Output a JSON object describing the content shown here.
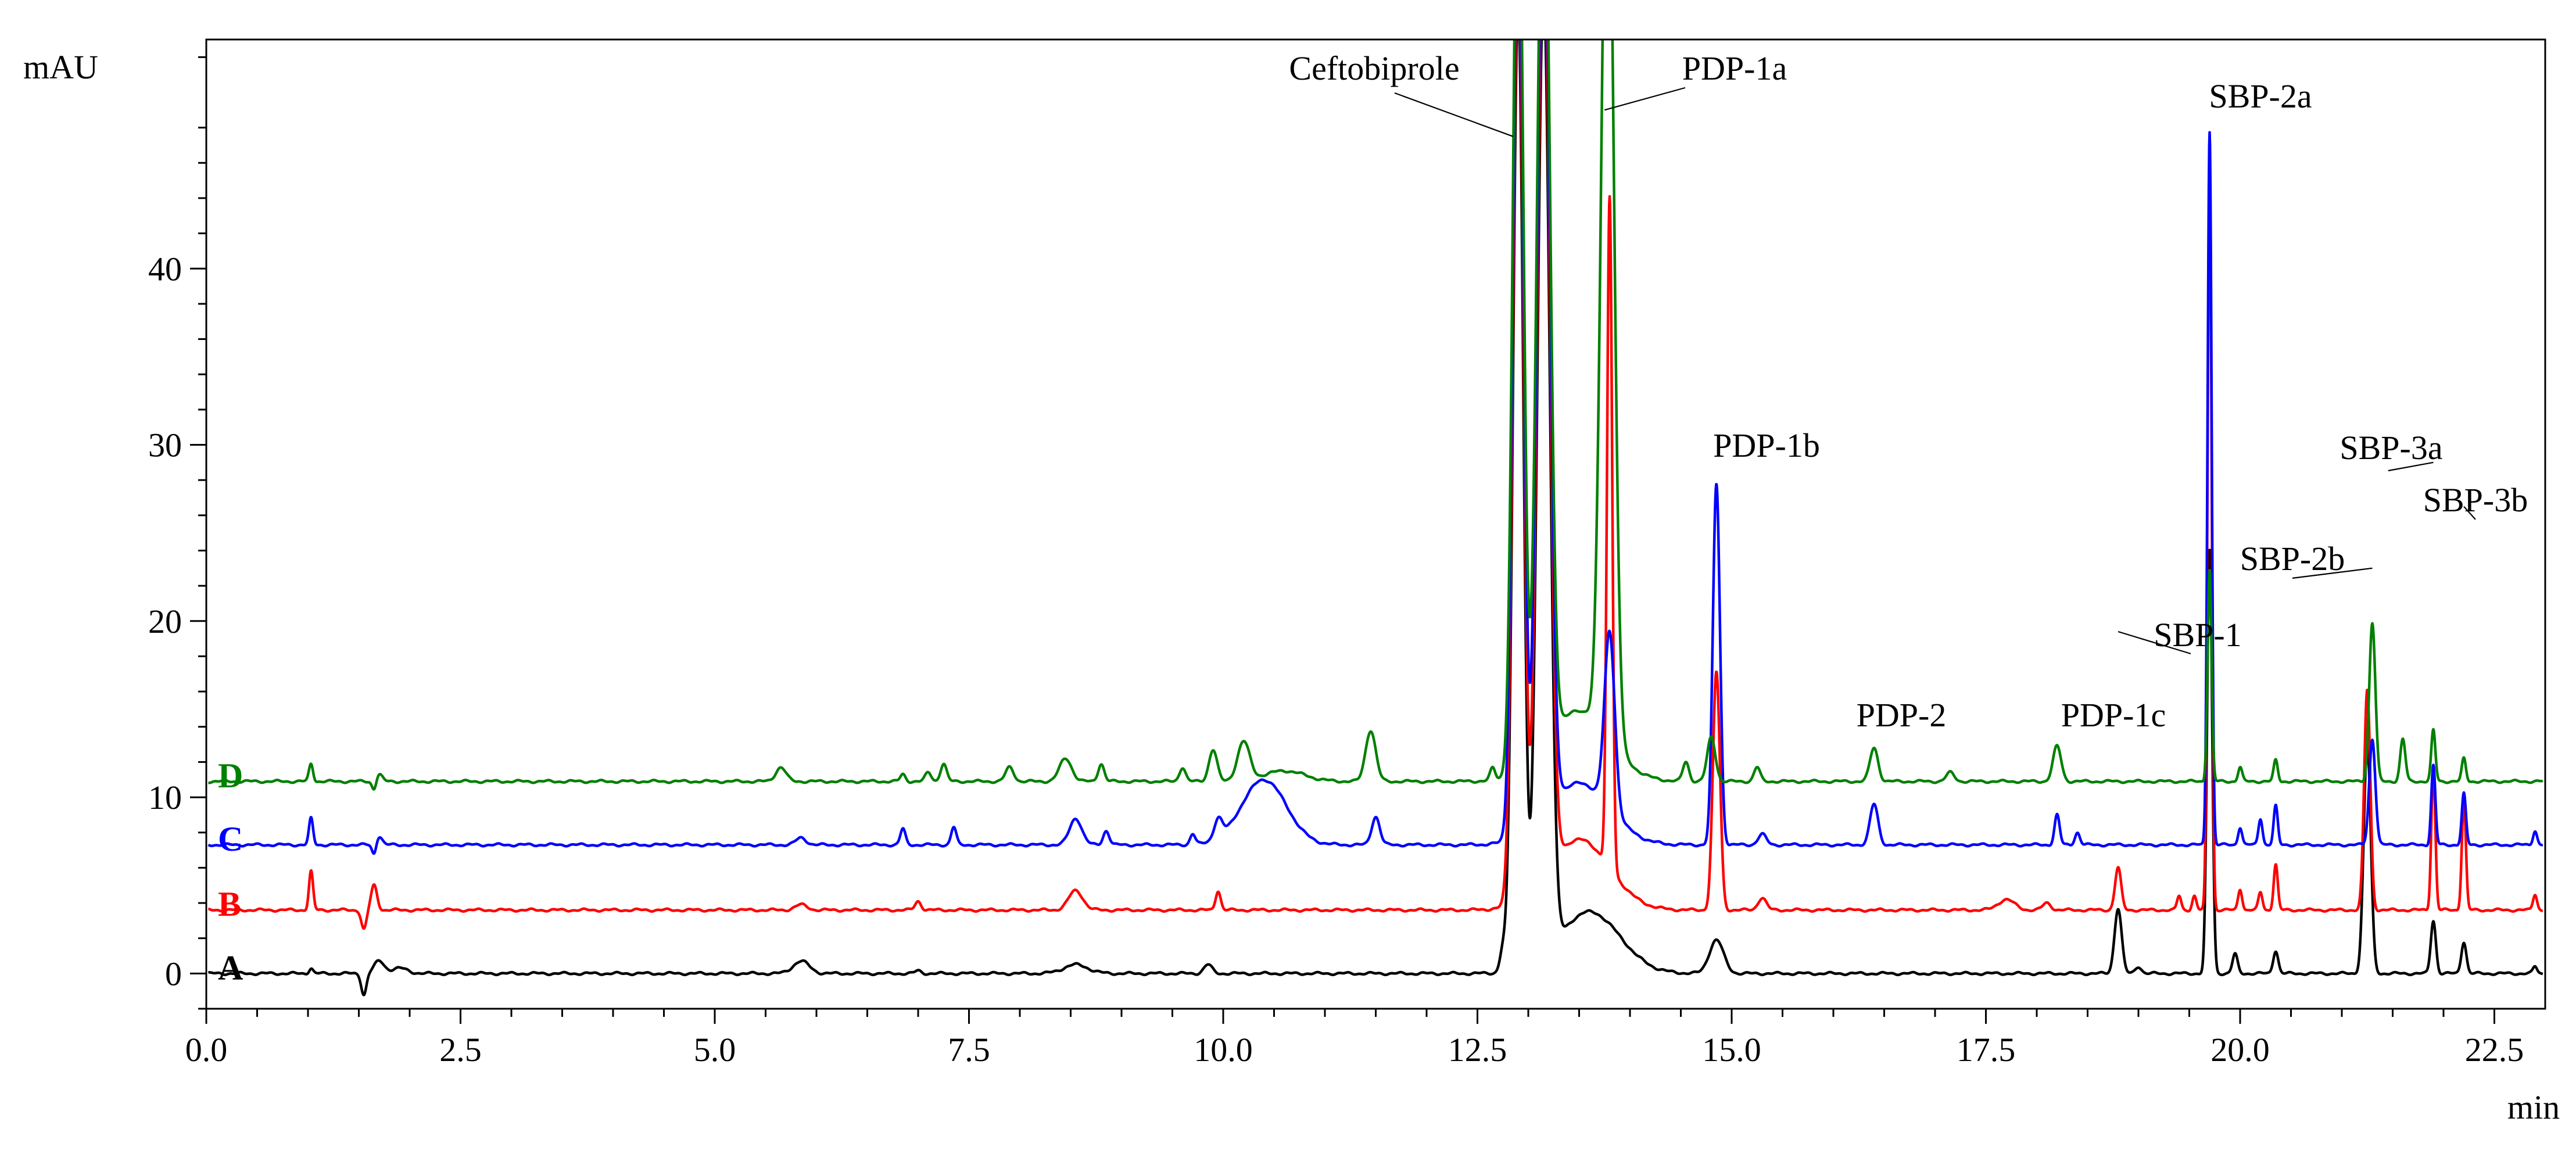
{
  "chart_data": {
    "type": "line",
    "xlabel": "min",
    "ylabel": "mAU",
    "xlim": [
      0,
      23.0
    ],
    "ylim": [
      -2,
      53
    ],
    "x_ticks": [
      {
        "value": 0,
        "label": "0.0"
      },
      {
        "value": 2.5,
        "label": "2.5"
      },
      {
        "value": 5.0,
        "label": "5.0"
      },
      {
        "value": 7.5,
        "label": "7.5"
      },
      {
        "value": 10.0,
        "label": "10.0"
      },
      {
        "value": 12.5,
        "label": "12.5"
      },
      {
        "value": 15.0,
        "label": "15.0"
      },
      {
        "value": 17.5,
        "label": "17.5"
      },
      {
        "value": 20.0,
        "label": "20.0"
      },
      {
        "value": 22.5,
        "label": "22.5"
      }
    ],
    "y_ticks": [
      {
        "value": 0,
        "label": "0"
      },
      {
        "value": 10,
        "label": "10"
      },
      {
        "value": 20,
        "label": "20"
      },
      {
        "value": 30,
        "label": "30"
      },
      {
        "value": 40,
        "label": "40"
      }
    ],
    "series": [
      {
        "name": "A",
        "color": "#000000",
        "baseline": 0.0,
        "peaks": [
          {
            "t": 1.03,
            "h": 0.3,
            "w": 0.02
          },
          {
            "t": 1.55,
            "h": -1.2,
            "w": 0.025
          },
          {
            "t": 1.7,
            "h": 0.7,
            "w": 0.05
          },
          {
            "t": 1.9,
            "h": 0.3,
            "w": 0.08
          },
          {
            "t": 5.85,
            "h": 0.7,
            "w": 0.08
          },
          {
            "t": 7.0,
            "h": 0.15,
            "w": 0.03
          },
          {
            "t": 8.55,
            "h": 0.5,
            "w": 0.12
          },
          {
            "t": 9.85,
            "h": 0.5,
            "w": 0.04
          },
          {
            "t": 12.75,
            "h": 1.2,
            "w": 0.03
          },
          {
            "t": 12.9,
            "h": 55,
            "w": 0.05
          },
          {
            "t": 13.15,
            "h": 55,
            "w": 0.06
          },
          {
            "t": 13.6,
            "h": 3.5,
            "w": 0.3
          },
          {
            "t": 14.85,
            "h": 1.9,
            "w": 0.07
          },
          {
            "t": 18.8,
            "h": 3.7,
            "w": 0.035
          },
          {
            "t": 19.0,
            "h": 0.4,
            "w": 0.03
          },
          {
            "t": 19.7,
            "h": 24,
            "w": 0.025
          },
          {
            "t": 19.95,
            "h": 1.1,
            "w": 0.025
          },
          {
            "t": 20.35,
            "h": 1.3,
            "w": 0.025
          },
          {
            "t": 21.25,
            "h": 13,
            "w": 0.035
          },
          {
            "t": 21.9,
            "h": 3.0,
            "w": 0.025
          },
          {
            "t": 22.2,
            "h": 1.8,
            "w": 0.025
          },
          {
            "t": 22.9,
            "h": 0.4,
            "w": 0.02
          }
        ]
      },
      {
        "name": "B",
        "color": "#ff0000",
        "baseline": 3.6,
        "peaks": [
          {
            "t": 1.03,
            "h": 2.2,
            "w": 0.02
          },
          {
            "t": 1.55,
            "h": -1.1,
            "w": 0.025
          },
          {
            "t": 1.65,
            "h": 1.4,
            "w": 0.03
          },
          {
            "t": 5.85,
            "h": 0.3,
            "w": 0.06
          },
          {
            "t": 7.0,
            "h": 0.5,
            "w": 0.03
          },
          {
            "t": 8.55,
            "h": 1.1,
            "w": 0.07
          },
          {
            "t": 9.95,
            "h": 1.1,
            "w": 0.025
          },
          {
            "t": 12.9,
            "h": 55,
            "w": 0.05
          },
          {
            "t": 13.15,
            "h": 55,
            "w": 0.06
          },
          {
            "t": 13.5,
            "h": 4.0,
            "w": 0.3
          },
          {
            "t": 13.8,
            "h": 38,
            "w": 0.025
          },
          {
            "t": 14.85,
            "h": 13.5,
            "w": 0.035
          },
          {
            "t": 15.3,
            "h": 0.7,
            "w": 0.04
          },
          {
            "t": 17.7,
            "h": 0.6,
            "w": 0.08
          },
          {
            "t": 18.1,
            "h": 0.4,
            "w": 0.04
          },
          {
            "t": 18.8,
            "h": 2.4,
            "w": 0.03
          },
          {
            "t": 19.4,
            "h": 0.8,
            "w": 0.02
          },
          {
            "t": 19.55,
            "h": 0.8,
            "w": 0.02
          },
          {
            "t": 19.7,
            "h": 42,
            "w": 0.02
          },
          {
            "t": 20.0,
            "h": 1.2,
            "w": 0.02
          },
          {
            "t": 20.2,
            "h": 1.0,
            "w": 0.02
          },
          {
            "t": 20.35,
            "h": 2.6,
            "w": 0.02
          },
          {
            "t": 21.25,
            "h": 12.5,
            "w": 0.03
          },
          {
            "t": 21.9,
            "h": 8.0,
            "w": 0.02
          },
          {
            "t": 22.2,
            "h": 6.3,
            "w": 0.02
          },
          {
            "t": 22.9,
            "h": 0.9,
            "w": 0.02
          }
        ]
      },
      {
        "name": "C",
        "color": "#0000ff",
        "baseline": 7.3,
        "peaks": [
          {
            "t": 1.03,
            "h": 1.5,
            "w": 0.02
          },
          {
            "t": 1.65,
            "h": -0.6,
            "w": 0.02
          },
          {
            "t": 1.7,
            "h": 0.5,
            "w": 0.03
          },
          {
            "t": 5.85,
            "h": 0.4,
            "w": 0.05
          },
          {
            "t": 6.85,
            "h": 0.9,
            "w": 0.025
          },
          {
            "t": 7.35,
            "h": 1.0,
            "w": 0.025
          },
          {
            "t": 8.55,
            "h": 1.5,
            "w": 0.06
          },
          {
            "t": 8.85,
            "h": 0.8,
            "w": 0.03
          },
          {
            "t": 9.7,
            "h": 0.6,
            "w": 0.025
          },
          {
            "t": 9.95,
            "h": 1.1,
            "w": 0.04
          },
          {
            "t": 10.4,
            "h": 3.7,
            "w": 0.22
          },
          {
            "t": 11.5,
            "h": 1.6,
            "w": 0.04
          },
          {
            "t": 12.9,
            "h": 55,
            "w": 0.05
          },
          {
            "t": 13.15,
            "h": 55,
            "w": 0.06
          },
          {
            "t": 13.5,
            "h": 3.5,
            "w": 0.3
          },
          {
            "t": 13.8,
            "h": 10,
            "w": 0.05
          },
          {
            "t": 14.85,
            "h": 20.5,
            "w": 0.035
          },
          {
            "t": 15.3,
            "h": 0.6,
            "w": 0.04
          },
          {
            "t": 16.4,
            "h": 2.3,
            "w": 0.04
          },
          {
            "t": 18.2,
            "h": 1.7,
            "w": 0.025
          },
          {
            "t": 18.4,
            "h": 0.7,
            "w": 0.025
          },
          {
            "t": 19.7,
            "h": 40.5,
            "w": 0.02
          },
          {
            "t": 20.0,
            "h": 1.0,
            "w": 0.02
          },
          {
            "t": 20.2,
            "h": 1.5,
            "w": 0.02
          },
          {
            "t": 20.35,
            "h": 2.2,
            "w": 0.02
          },
          {
            "t": 21.3,
            "h": 6.0,
            "w": 0.03
          },
          {
            "t": 21.9,
            "h": 4.5,
            "w": 0.02
          },
          {
            "t": 22.2,
            "h": 2.9,
            "w": 0.02
          },
          {
            "t": 22.9,
            "h": 0.8,
            "w": 0.02
          }
        ]
      },
      {
        "name": "D",
        "color": "#008000",
        "baseline": 10.9,
        "peaks": [
          {
            "t": 1.03,
            "h": 1.0,
            "w": 0.02
          },
          {
            "t": 1.65,
            "h": -0.5,
            "w": 0.02
          },
          {
            "t": 1.7,
            "h": 0.4,
            "w": 0.03
          },
          {
            "t": 5.65,
            "h": 0.8,
            "w": 0.05
          },
          {
            "t": 6.85,
            "h": 0.4,
            "w": 0.025
          },
          {
            "t": 7.1,
            "h": 0.5,
            "w": 0.03
          },
          {
            "t": 7.25,
            "h": 1.0,
            "w": 0.03
          },
          {
            "t": 7.9,
            "h": 0.8,
            "w": 0.04
          },
          {
            "t": 8.45,
            "h": 1.3,
            "w": 0.06
          },
          {
            "t": 8.8,
            "h": 1.0,
            "w": 0.03
          },
          {
            "t": 9.6,
            "h": 0.8,
            "w": 0.03
          },
          {
            "t": 9.9,
            "h": 1.8,
            "w": 0.04
          },
          {
            "t": 10.2,
            "h": 2.2,
            "w": 0.06
          },
          {
            "t": 10.6,
            "h": 0.6,
            "w": 0.2
          },
          {
            "t": 11.45,
            "h": 2.9,
            "w": 0.05
          },
          {
            "t": 12.65,
            "h": 0.7,
            "w": 0.025
          },
          {
            "t": 12.9,
            "h": 55,
            "w": 0.05
          },
          {
            "t": 13.15,
            "h": 55,
            "w": 0.06
          },
          {
            "t": 13.5,
            "h": 4.0,
            "w": 0.3
          },
          {
            "t": 13.78,
            "h": 55,
            "w": 0.06
          },
          {
            "t": 14.55,
            "h": 1.1,
            "w": 0.03
          },
          {
            "t": 14.8,
            "h": 2.5,
            "w": 0.04
          },
          {
            "t": 15.25,
            "h": 0.8,
            "w": 0.03
          },
          {
            "t": 16.4,
            "h": 1.9,
            "w": 0.04
          },
          {
            "t": 17.15,
            "h": 0.5,
            "w": 0.04
          },
          {
            "t": 18.2,
            "h": 2.0,
            "w": 0.04
          },
          {
            "t": 19.7,
            "h": 12,
            "w": 0.02
          },
          {
            "t": 20.0,
            "h": 0.8,
            "w": 0.02
          },
          {
            "t": 20.35,
            "h": 1.2,
            "w": 0.02
          },
          {
            "t": 21.3,
            "h": 9.0,
            "w": 0.03
          },
          {
            "t": 21.6,
            "h": 2.4,
            "w": 0.025
          },
          {
            "t": 21.9,
            "h": 2.9,
            "w": 0.02
          },
          {
            "t": 22.2,
            "h": 1.3,
            "w": 0.02
          }
        ]
      }
    ],
    "annotations": [
      {
        "label": "Ceftobiprole",
        "t": 12.85,
        "y": 47.5
      },
      {
        "label": "PDP-1a",
        "t": 13.75,
        "y": 49
      },
      {
        "label": "PDP-1b",
        "t": 14.85,
        "y": 28.5
      },
      {
        "label": "PDP-2",
        "t": 16.4,
        "y": 13.5
      },
      {
        "label": "PDP-1c",
        "t": 18.2,
        "y": 13.5
      },
      {
        "label": "SBP-1",
        "t": 18.8,
        "y": 19.4
      },
      {
        "label": "SBP-2a",
        "t": 19.7,
        "y": 49
      },
      {
        "label": "SBP-2b",
        "t": 21.3,
        "y": 23
      },
      {
        "label": "SBP-3a",
        "t": 21.9,
        "y": 29
      },
      {
        "label": "SBP-3b",
        "t": 22.2,
        "y": 26.5
      }
    ]
  }
}
